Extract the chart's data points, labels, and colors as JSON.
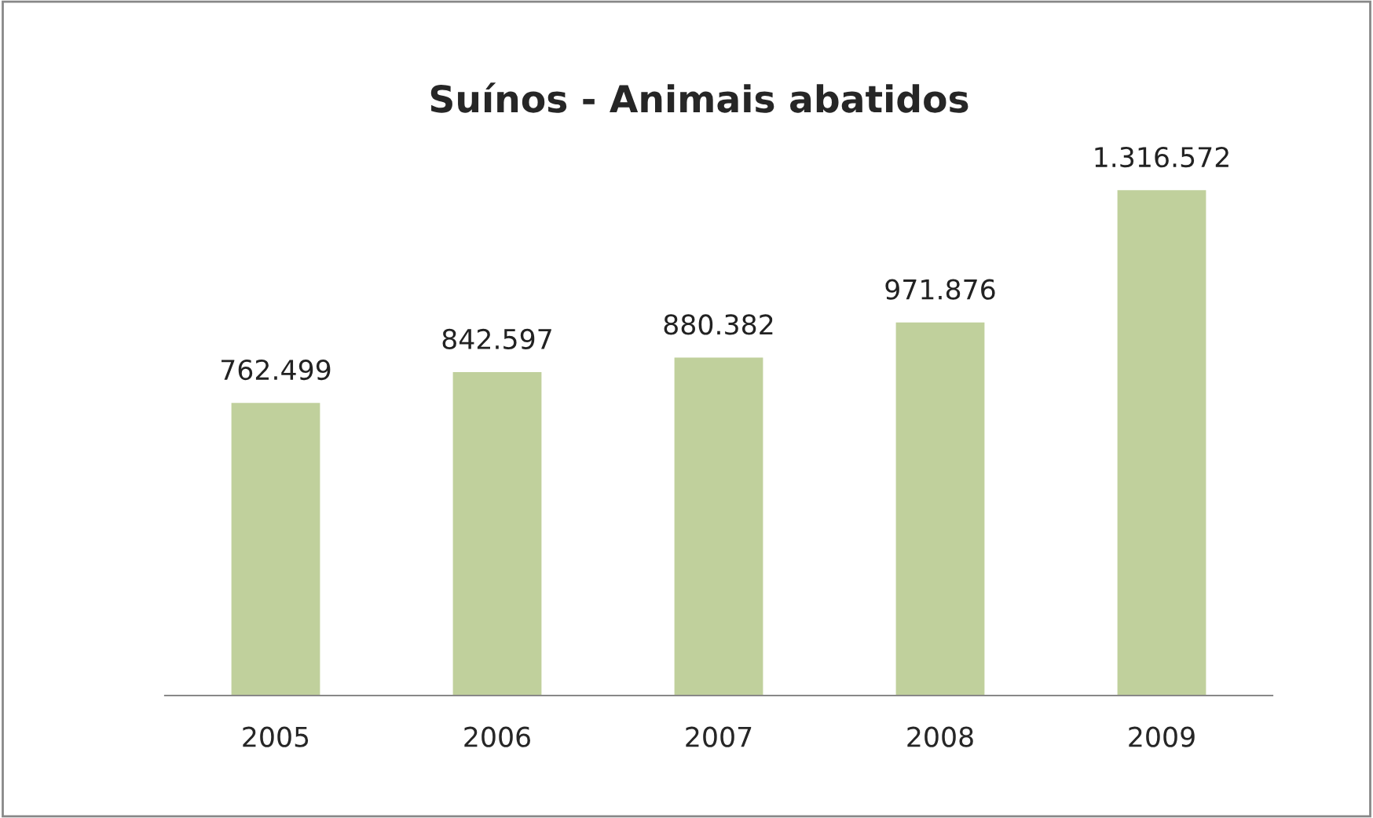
{
  "chart_data": {
    "type": "bar",
    "title": "Suínos - Animais abatidos",
    "categories": [
      "2005",
      "2006",
      "2007",
      "2008",
      "2009"
    ],
    "values": [
      762499,
      842597,
      880382,
      971876,
      1316572
    ],
    "value_labels": [
      "762.499",
      "842.597",
      "880.382",
      "971.876",
      "1.316.572"
    ],
    "color": "#c0d09c",
    "grid": false,
    "legend": false
  }
}
